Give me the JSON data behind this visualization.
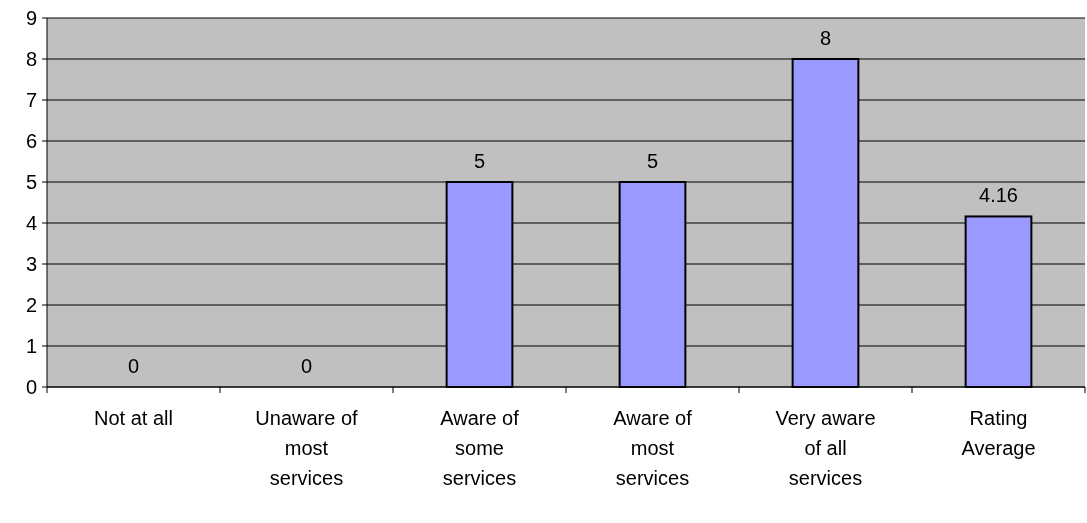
{
  "chart_data": {
    "type": "bar",
    "categories": [
      "Not at all",
      "Unaware of most services",
      "Aware of some services",
      "Aware of most services",
      "Very aware of all services",
      "Rating Average"
    ],
    "values": [
      0,
      0,
      5,
      5,
      8,
      4.16
    ],
    "color": "#9999ff",
    "ylim": [
      0,
      9
    ],
    "yticks": [
      0,
      1,
      2,
      3,
      4,
      5,
      6,
      7,
      8,
      9
    ],
    "grid": "y",
    "data_labels": true
  }
}
